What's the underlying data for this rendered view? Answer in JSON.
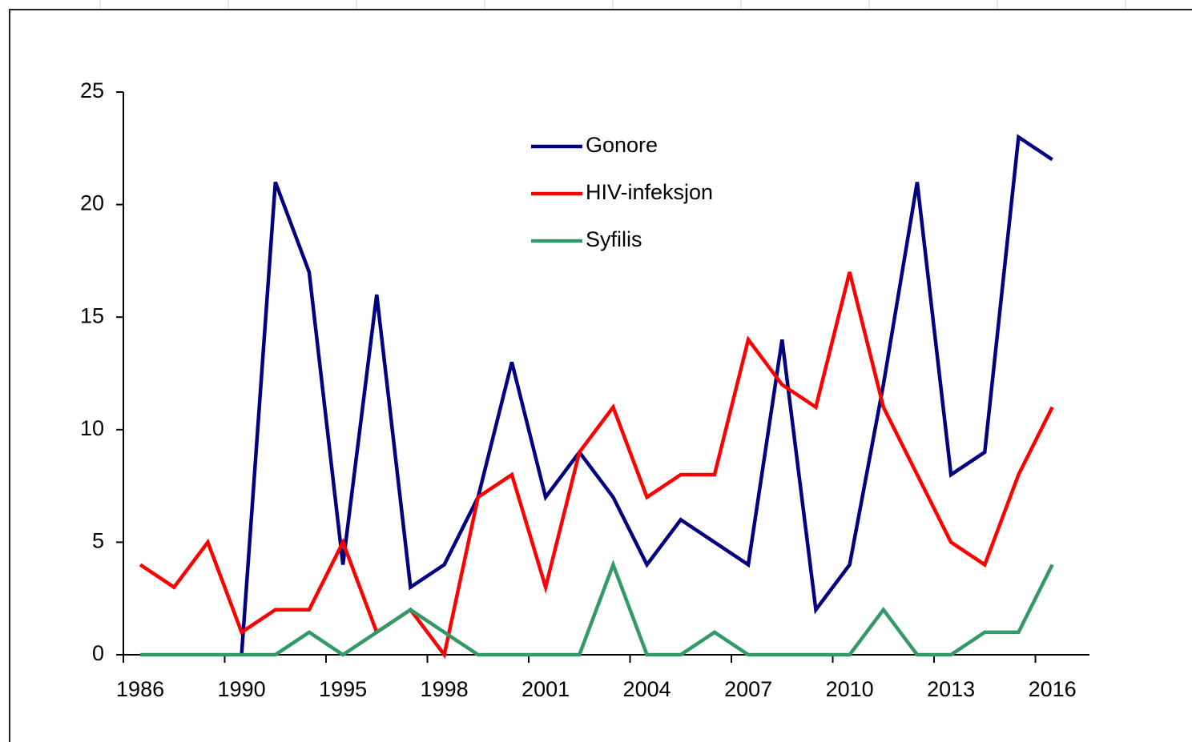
{
  "chart_data": {
    "type": "line",
    "categories": [
      "1986",
      null,
      null,
      "1990",
      null,
      null,
      "1995",
      null,
      null,
      "1998",
      null,
      null,
      "2001",
      null,
      null,
      "2004",
      null,
      null,
      "2007",
      null,
      null,
      "2010",
      null,
      null,
      "2013",
      null,
      null,
      "2016"
    ],
    "series": [
      {
        "name": "Gonore",
        "color": "#000080",
        "values": [
          null,
          null,
          null,
          0,
          21,
          17,
          4,
          16,
          3,
          4,
          7,
          13,
          7,
          9,
          7,
          4,
          6,
          5,
          4,
          14,
          2,
          4,
          12,
          21,
          8,
          9,
          23,
          22
        ]
      },
      {
        "name": "HIV-infeksjon",
        "color": "#ff0000",
        "values": [
          4,
          3,
          5,
          1,
          2,
          2,
          5,
          1,
          2,
          0,
          7,
          8,
          3,
          9,
          11,
          7,
          8,
          8,
          14,
          12,
          11,
          17,
          11,
          8,
          5,
          4,
          8,
          11
        ]
      },
      {
        "name": "Syfilis",
        "color": "#339966",
        "values": [
          0,
          0,
          0,
          0,
          0,
          1,
          0,
          1,
          2,
          1,
          0,
          0,
          0,
          0,
          4,
          0,
          0,
          1,
          0,
          0,
          0,
          0,
          2,
          0,
          0,
          1,
          1,
          4
        ]
      }
    ],
    "ylim": [
      0,
      25
    ],
    "yticks": [
      0,
      5,
      10,
      15,
      20,
      25
    ],
    "grid": false
  }
}
